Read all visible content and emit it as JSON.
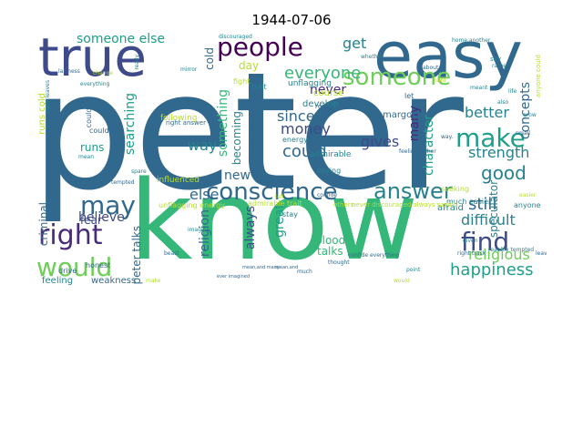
{
  "figure": {
    "title": "1944-07-06"
  },
  "colors": {
    "purple": "#440154",
    "indigo": "#3e4a89",
    "blue": "#31688e",
    "teal": "#26828e",
    "green": "#35b779",
    "lime": "#6ece58",
    "yellowgreen": "#b5de2b",
    "darkblue": "#472c7a",
    "sea": "#1f9e89"
  },
  "words": [
    {
      "text": "peter",
      "color": "#31688e"
    },
    {
      "text": "know",
      "color": "#35b779"
    },
    {
      "text": "easy",
      "color": "#31688e"
    },
    {
      "text": "true",
      "color": "#3e4a89"
    },
    {
      "text": "people",
      "color": "#440154"
    },
    {
      "text": "someone",
      "color": "#6ece58"
    },
    {
      "text": "make",
      "color": "#1f9e89"
    },
    {
      "text": "conscience",
      "color": "#31688e"
    },
    {
      "text": "answer",
      "color": "#26828e"
    },
    {
      "text": "find",
      "color": "#3e4a89"
    },
    {
      "text": "right",
      "color": "#472c7a"
    },
    {
      "text": "may",
      "color": "#31688e"
    },
    {
      "text": "would",
      "color": "#6ece58"
    },
    {
      "text": "happiness",
      "color": "#1f9e89"
    },
    {
      "text": "good",
      "color": "#26828e"
    },
    {
      "text": "everyone",
      "color": "#35b779"
    },
    {
      "text": "someone else",
      "color": "#1f9e89"
    },
    {
      "text": "get",
      "color": "#26828e"
    },
    {
      "text": "could",
      "color": "#31688e"
    },
    {
      "text": "since",
      "color": "#31688e"
    },
    {
      "text": "money",
      "color": "#3e4a89"
    },
    {
      "text": "never",
      "color": "#472c7a"
    },
    {
      "text": "better",
      "color": "#26828e"
    },
    {
      "text": "gives",
      "color": "#3e4a89"
    },
    {
      "text": "many",
      "color": "#472c7a"
    },
    {
      "text": "concepts",
      "color": "#31688e"
    },
    {
      "text": "strength",
      "color": "#26828e"
    },
    {
      "text": "character",
      "color": "#1f9e89"
    },
    {
      "text": "searching",
      "color": "#1f9e89"
    },
    {
      "text": "something",
      "color": "#35b779"
    },
    {
      "text": "way",
      "color": "#26828e"
    },
    {
      "text": "believe",
      "color": "#3e4a89"
    },
    {
      "text": "new",
      "color": "#31688e"
    },
    {
      "text": "else",
      "color": "#31688e"
    },
    {
      "text": "still",
      "color": "#31688e"
    },
    {
      "text": "difficult",
      "color": "#26828e"
    },
    {
      "text": "religious",
      "color": "#6ece58"
    },
    {
      "text": "great",
      "color": "#1f9e89"
    },
    {
      "text": "always",
      "color": "#3e4a89"
    },
    {
      "text": "religion",
      "color": "#31688e"
    },
    {
      "text": "blood",
      "color": "#35b779"
    },
    {
      "text": "talks",
      "color": "#35b779"
    },
    {
      "text": "peter talks",
      "color": "#31688e"
    },
    {
      "text": "fear",
      "color": "#3e4a89"
    },
    {
      "text": "criminal",
      "color": "#31688e"
    },
    {
      "text": "runs",
      "color": "#1f9e89"
    },
    {
      "text": "runs cold",
      "color": "#b5de2b"
    },
    {
      "text": "blood runs",
      "color": "#31688e"
    },
    {
      "text": "becoming",
      "color": "#26828e"
    },
    {
      "text": "day",
      "color": "#b5de2b"
    },
    {
      "text": "cold",
      "color": "#31688e"
    },
    {
      "text": "afraid",
      "color": "#26828e"
    },
    {
      "text": "speculator",
      "color": "#26828e"
    },
    {
      "text": "feeling",
      "color": "#26828e"
    },
    {
      "text": "weakness",
      "color": "#31688e"
    },
    {
      "text": "energy",
      "color": "#26828e"
    },
    {
      "text": "course",
      "color": "#b5de2b"
    },
    {
      "text": "develop",
      "color": "#26828e"
    },
    {
      "text": "margot",
      "color": "#31688e"
    },
    {
      "text": "unflagging",
      "color": "#26828e"
    },
    {
      "text": "following",
      "color": "#b5de2b"
    },
    {
      "text": "influenced",
      "color": "#b5de2b"
    },
    {
      "text": "admirable",
      "color": "#26828e"
    },
    {
      "text": "saying",
      "color": "#26828e"
    },
    {
      "text": "honest",
      "color": "#31688e"
    },
    {
      "text": "drive",
      "color": "#31688e"
    },
    {
      "text": "stay",
      "color": "#26828e"
    },
    {
      "text": "unflagging energy",
      "color": "#b5de2b"
    },
    {
      "text": "admirable trait",
      "color": "#b5de2b"
    },
    {
      "text": "seeking",
      "color": "#b5de2b"
    },
    {
      "text": "much easier",
      "color": "#26828e"
    },
    {
      "text": "anyone",
      "color": "#26828e"
    },
    {
      "text": "could say",
      "color": "#31688e"
    },
    {
      "text": "fight",
      "color": "#b5de2b"
    },
    {
      "text": "trait",
      "color": "#26828e"
    },
    {
      "text": "reply",
      "color": "#31688e"
    },
    {
      "text": "let",
      "color": "#31688e"
    },
    {
      "text": "right answer",
      "color": "#31688e"
    },
    {
      "text": "say",
      "color": "#26828e"
    },
    {
      "text": "discouraged",
      "color": "#26828e"
    },
    {
      "text": "laziness",
      "color": "#31688e"
    },
    {
      "text": "change",
      "color": "#b5de2b"
    },
    {
      "text": "everything",
      "color": "#26828e"
    },
    {
      "text": "really",
      "color": "#26828e"
    },
    {
      "text": "reached",
      "color": "#31688e"
    },
    {
      "text": "feeling rather",
      "color": "#31688e"
    },
    {
      "text": "whether",
      "color": "#26828e"
    },
    {
      "text": "mean",
      "color": "#26828e"
    },
    {
      "text": "confide",
      "color": "#31688e"
    },
    {
      "text": "others",
      "color": "#b5de2b"
    },
    {
      "text": "never discouraged always saying",
      "color": "#b5de2b"
    },
    {
      "text": "imagine",
      "color": "#26828e"
    },
    {
      "text": "thought",
      "color": "#31688e"
    },
    {
      "text": "reaoltly tempted",
      "color": "#26828e"
    },
    {
      "text": "right track",
      "color": "#31688e"
    },
    {
      "text": "anyone could",
      "color": "#b5de2b"
    },
    {
      "text": "much",
      "color": "#31688e"
    },
    {
      "text": "point",
      "color": "#26828e"
    },
    {
      "text": "confide everything",
      "color": "#31688e"
    },
    {
      "text": "given",
      "color": "#26828e"
    },
    {
      "text": "easier",
      "color": "#b5de2b"
    },
    {
      "text": "home another",
      "color": "#26828e"
    },
    {
      "text": "rather",
      "color": "#26828e"
    },
    {
      "text": "tempted",
      "color": "#31688e"
    },
    {
      "text": "could.",
      "color": "#31688e"
    },
    {
      "text": "way.",
      "color": "#31688e"
    },
    {
      "text": "life",
      "color": "#26828e"
    },
    {
      "text": "grow",
      "color": "#26828e"
    },
    {
      "text": "ever imagined",
      "color": "#31688e"
    },
    {
      "text": "mean,and",
      "color": "#31688e"
    },
    {
      "text": "mean,and many",
      "color": "#31688e"
    },
    {
      "text": "about",
      "color": "#31688e"
    },
    {
      "text": "would",
      "color": "#b5de2b"
    },
    {
      "text": "make",
      "color": "#b5de2b"
    },
    {
      "text": "also",
      "color": "#26828e"
    },
    {
      "text": "small",
      "color": "#31688e"
    },
    {
      "text": "reply leaves",
      "color": "#26828e"
    },
    {
      "text": "mirror",
      "color": "#26828e"
    },
    {
      "text": "beast",
      "color": "#31688e"
    },
    {
      "text": "spare",
      "color": "#26828e"
    },
    {
      "text": "hard",
      "color": "#b5de2b"
    },
    {
      "text": "leave",
      "color": "#31688e"
    },
    {
      "text": "meant",
      "color": "#26828e"
    },
    {
      "text": "tell",
      "color": "#b5de2b"
    }
  ]
}
